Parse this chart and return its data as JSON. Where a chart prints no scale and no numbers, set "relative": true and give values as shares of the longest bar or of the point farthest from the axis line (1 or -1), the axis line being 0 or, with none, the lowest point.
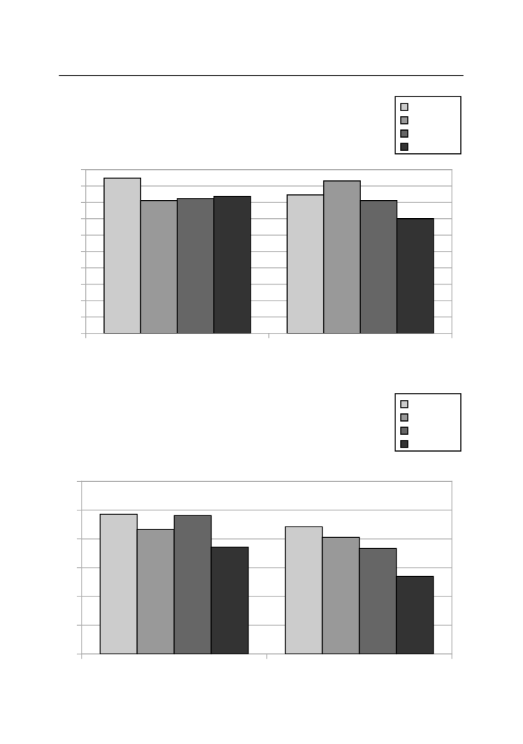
{
  "chart_data": [
    {
      "type": "bar",
      "relative": true,
      "categories": [
        null,
        null
      ],
      "grid": "y",
      "series": [
        {
          "color": "#cccccc",
          "values": [
            1,
            0.892
          ]
        },
        {
          "color": "#999999",
          "values": [
            0.856,
            0.982
          ]
        },
        {
          "color": "#666666",
          "values": [
            0.869,
            0.856
          ]
        },
        {
          "color": "#333333",
          "values": [
            0.883,
            0.739
          ]
        }
      ]
    },
    {
      "type": "bar",
      "relative": true,
      "categories": [
        null,
        null
      ],
      "grid": "y",
      "series": [
        {
          "color": "#cccccc",
          "values": [
            1,
            0.91
          ]
        },
        {
          "color": "#999999",
          "values": [
            0.89,
            0.835
          ]
        },
        {
          "color": "#666666",
          "values": [
            0.99,
            0.755
          ]
        },
        {
          "color": "#333333",
          "values": [
            0.765,
            0.555
          ]
        }
      ]
    }
  ]
}
